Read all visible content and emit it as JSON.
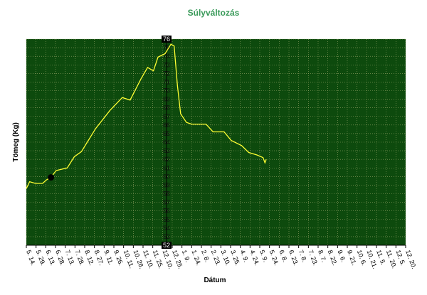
{
  "chart_data": {
    "type": "line",
    "title": "Súlyváltozás",
    "xlabel": "Dátum",
    "ylabel": "Tömeg (Kg)",
    "categories": [
      "5. 14.",
      "5. 29.",
      "6. 13.",
      "6. 28.",
      "7. 13.",
      "7. 28.",
      "8. 12.",
      "8. 27.",
      "9. 11.",
      "9. 26.",
      "10. 11.",
      "10. 26.",
      "11. 10.",
      "11. 25.",
      "12. 10.",
      "12. 25.",
      "1. 9.",
      "1. 24.",
      "2. 8.",
      "2. 23.",
      "3. 10.",
      "3. 25.",
      "4. 9.",
      "4. 24.",
      "5. 9.",
      "5. 24.",
      "6. 8.",
      "6. 23.",
      "7. 8.",
      "7. 23.",
      "8. 7.",
      "8. 22.",
      "9. 6.",
      "9. 21.",
      "10. 6.",
      "10. 21.",
      "11. 5.",
      "11. 20.",
      "12. 5.",
      "12. 20."
    ],
    "x": [
      "5. 14.",
      "5. 19.",
      "5. 28.",
      "6. 8.",
      "6. 14.",
      "6. 21.",
      "6. 29.",
      "7. 16.",
      "7. 27.",
      "8. 7.",
      "8. 29.",
      "9. 20.",
      "10. 9.",
      "10. 21.",
      "11. 7.",
      "11. 17.",
      "11. 26.",
      "12. 3.",
      "12. 14.",
      "12. 23.",
      "12. 28.",
      "1. 2.",
      "1. 7.",
      "1. 16.",
      "1. 24.",
      "2. 15.",
      "2. 26.",
      "3. 15.",
      "3. 26.",
      "4. 11.",
      "4. 22.",
      "5. 5.",
      "5. 14.",
      "5. 17.",
      "5. 19."
    ],
    "series": [
      {
        "color": "#ffff33",
        "values": [
          58.6,
          59.4,
          59.2,
          59.2,
          59.6,
          59.9,
          60.7,
          61.0,
          62.3,
          62.9,
          65.6,
          67.7,
          69.2,
          68.9,
          71.4,
          72.7,
          72.3,
          73.9,
          74.3,
          75.4,
          75.2,
          70.6,
          67.3,
          66.3,
          66.1,
          66.1,
          65.2,
          65.2,
          64.2,
          63.6,
          62.8,
          62.5,
          62.2,
          61.6,
          62.0
        ]
      }
    ],
    "marker": {
      "x": "6. 21.",
      "value": 59.9
    },
    "ylim": [
      52,
      76
    ],
    "yticks": [
      52,
      53,
      54,
      55,
      56,
      57,
      58,
      59,
      60,
      61,
      62,
      63,
      64,
      65,
      66,
      67,
      68,
      69,
      70,
      71,
      72,
      73,
      74,
      75,
      76
    ],
    "grid": true,
    "background": "#0d4a0d"
  }
}
